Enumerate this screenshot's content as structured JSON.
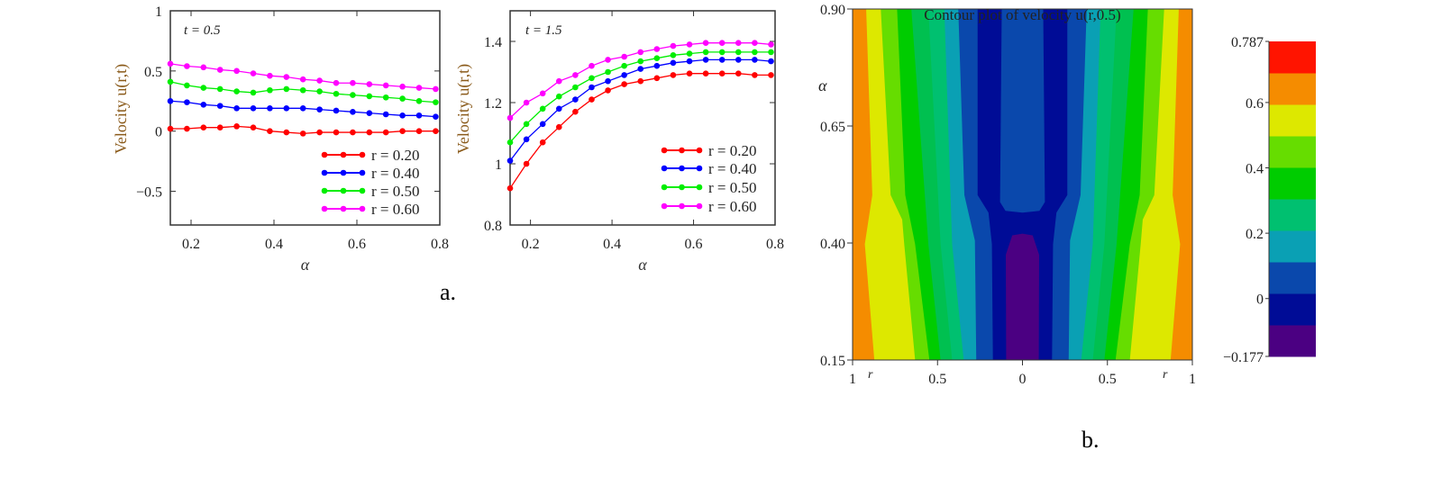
{
  "panel_labels": {
    "a": "a.",
    "b": "b."
  },
  "chart_data": [
    {
      "type": "line",
      "annotation": "t = 0.5",
      "xlabel": "α",
      "ylabel": "Velocity u(r,t)",
      "xlim": [
        0.15,
        0.8
      ],
      "ylim": [
        -0.78,
        1
      ],
      "xticks": [
        "0.2",
        "0.4",
        "0.6",
        "0.8"
      ],
      "xtick_values": [
        0.2,
        0.4,
        0.6,
        0.8
      ],
      "yticks": [
        "1",
        "0.5",
        "0",
        "−0.5"
      ],
      "ytick_values": [
        1,
        0.5,
        0,
        -0.5
      ],
      "legend_position": "bottom-right",
      "x": [
        0.15,
        0.19,
        0.23,
        0.27,
        0.31,
        0.35,
        0.39,
        0.43,
        0.47,
        0.51,
        0.55,
        0.59,
        0.63,
        0.67,
        0.71,
        0.75,
        0.79
      ],
      "series": [
        {
          "name": "r = 0.20",
          "color": "#ff0000",
          "values": [
            0.02,
            0.02,
            0.03,
            0.03,
            0.04,
            0.03,
            0.0,
            -0.01,
            -0.02,
            -0.01,
            -0.01,
            -0.01,
            -0.01,
            -0.01,
            0.0,
            0.0,
            0.0
          ]
        },
        {
          "name": "r = 0.40",
          "color": "#0000ff",
          "values": [
            0.25,
            0.24,
            0.22,
            0.21,
            0.19,
            0.19,
            0.19,
            0.19,
            0.19,
            0.18,
            0.17,
            0.16,
            0.15,
            0.14,
            0.13,
            0.13,
            0.12
          ]
        },
        {
          "name": "r = 0.50",
          "color": "#00ee00",
          "values": [
            0.41,
            0.38,
            0.36,
            0.35,
            0.33,
            0.32,
            0.34,
            0.35,
            0.34,
            0.33,
            0.31,
            0.3,
            0.29,
            0.28,
            0.27,
            0.25,
            0.24
          ]
        },
        {
          "name": "r = 0.60",
          "color": "#ff00ff",
          "values": [
            0.56,
            0.54,
            0.53,
            0.51,
            0.5,
            0.48,
            0.46,
            0.45,
            0.43,
            0.42,
            0.4,
            0.4,
            0.39,
            0.38,
            0.37,
            0.36,
            0.35
          ]
        }
      ]
    },
    {
      "type": "line",
      "annotation": "t = 1.5",
      "xlabel": "α",
      "ylabel": "Velocity u(r,t)",
      "xlim": [
        0.15,
        0.8
      ],
      "ylim": [
        0.8,
        1.5
      ],
      "xticks": [
        "0.2",
        "0.4",
        "0.6",
        "0.8"
      ],
      "xtick_values": [
        0.2,
        0.4,
        0.6,
        0.8
      ],
      "yticks": [
        "1.4",
        "1.2",
        "1",
        "0.8"
      ],
      "ytick_values": [
        1.4,
        1.2,
        1.0,
        0.8
      ],
      "legend_position": "bottom-right",
      "x": [
        0.15,
        0.19,
        0.23,
        0.27,
        0.31,
        0.35,
        0.39,
        0.43,
        0.47,
        0.51,
        0.55,
        0.59,
        0.63,
        0.67,
        0.71,
        0.75,
        0.79
      ],
      "series": [
        {
          "name": "r = 0.20",
          "color": "#ff0000",
          "values": [
            0.92,
            1.0,
            1.07,
            1.12,
            1.17,
            1.21,
            1.24,
            1.26,
            1.27,
            1.28,
            1.29,
            1.295,
            1.295,
            1.295,
            1.295,
            1.29,
            1.29
          ]
        },
        {
          "name": "r = 0.40",
          "color": "#0000ff",
          "values": [
            1.01,
            1.08,
            1.13,
            1.18,
            1.21,
            1.25,
            1.27,
            1.29,
            1.31,
            1.32,
            1.33,
            1.335,
            1.34,
            1.34,
            1.34,
            1.34,
            1.335
          ]
        },
        {
          "name": "r = 0.50",
          "color": "#00ee00",
          "values": [
            1.07,
            1.13,
            1.18,
            1.22,
            1.25,
            1.28,
            1.3,
            1.32,
            1.335,
            1.345,
            1.355,
            1.36,
            1.365,
            1.365,
            1.365,
            1.365,
            1.365
          ]
        },
        {
          "name": "r = 0.60",
          "color": "#ff00ff",
          "values": [
            1.15,
            1.2,
            1.23,
            1.27,
            1.29,
            1.32,
            1.34,
            1.35,
            1.365,
            1.375,
            1.385,
            1.39,
            1.395,
            1.395,
            1.395,
            1.395,
            1.39
          ]
        }
      ]
    },
    {
      "type": "heatmap",
      "title": "Contour plot of velocity u(r,0.5)",
      "xlabel": "r",
      "ylabel": "α",
      "xticks": [
        "1",
        "0.5",
        "0",
        "0.5",
        "1"
      ],
      "yticks": [
        "0.90",
        "0.65",
        "0.40",
        "0.15"
      ],
      "ylim": [
        0.15,
        0.9
      ],
      "colorbar": {
        "min": -0.177,
        "max": 0.787,
        "ticks": [
          "0.787",
          "0.6",
          "0.4",
          "0.2",
          "0",
          "−0.177"
        ],
        "tick_values": [
          0.787,
          0.6,
          0.4,
          0.2,
          0,
          -0.177
        ],
        "colors": [
          "#4b0082",
          "#000c96",
          "#0a48ac",
          "#0aa0b4",
          "#00c070",
          "#00cc00",
          "#66dd00",
          "#dde800",
          "#f58c00",
          "#ff1400"
        ]
      }
    }
  ]
}
